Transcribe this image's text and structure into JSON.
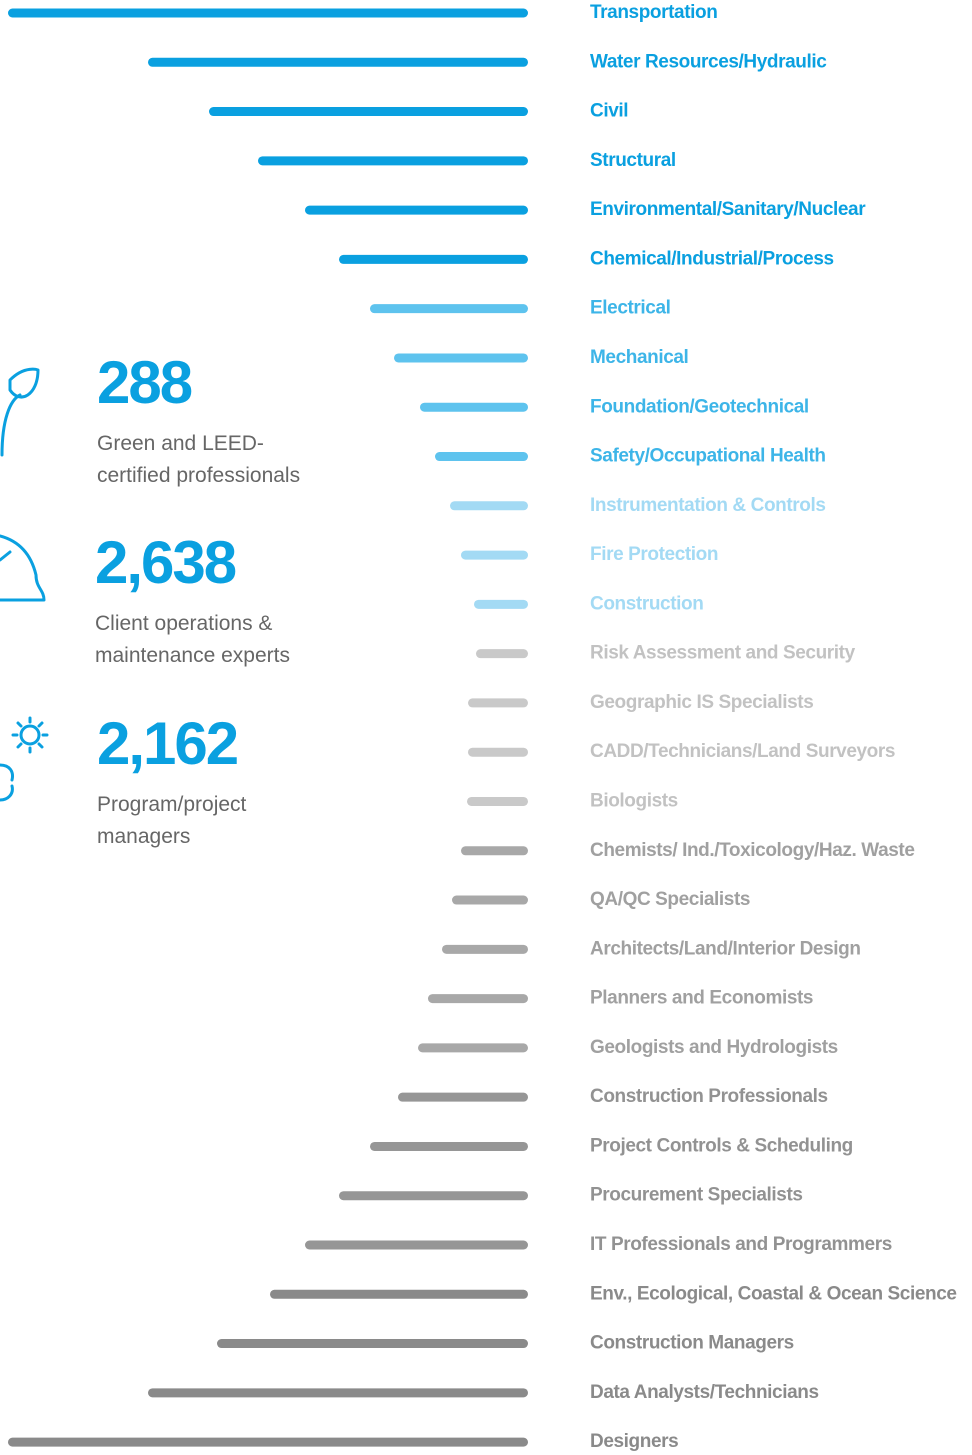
{
  "chart_data": {
    "type": "bar",
    "categories": [
      "Transportation",
      "Water Resources/Hydraulic",
      "Civil",
      "Structural",
      "Environmental/Sanitary/Nuclear",
      "Chemical/Industrial/Process",
      "Electrical",
      "Mechanical",
      "Foundation/Geotechnical",
      "Safety/Occupational Health",
      "Instrumentation & Controls",
      "Fire Protection",
      "Construction",
      "Risk Assessment and Security",
      "Geographic IS Specialists",
      "CADD/Technicians/Land Surveyors",
      "Biologists",
      "Chemists/ Ind./Toxicology/Haz. Waste",
      "QA/QC Specialists",
      "Architects/Land/Interior Design",
      "Planners and Economists",
      "Geologists and Hydrologists",
      "Construction Professionals",
      "Project Controls & Scheduling",
      "Procurement Specialists",
      "IT Professionals and Programmers",
      "Env., Ecological, Coastal & Ocean Science",
      "Construction Managers",
      "Data Analysts/Technicians",
      "Designers"
    ],
    "values": [
      520,
      380,
      319,
      270,
      223,
      189,
      158,
      134,
      108,
      93,
      78,
      67,
      54,
      52,
      60,
      60,
      61,
      67,
      76,
      86,
      100,
      110,
      130,
      158,
      189,
      223,
      258,
      311,
      380,
      520
    ],
    "colors": [
      "#0aa0e0",
      "#0aa0e0",
      "#0aa0e0",
      "#0aa0e0",
      "#0aa0e0",
      "#0aa0e0",
      "#5ec3ee",
      "#5ec3ee",
      "#5ec3ee",
      "#5ec3ee",
      "#a3daf4",
      "#a3daf4",
      "#a3daf4",
      "#c9c9c9",
      "#c9c9c9",
      "#c9c9c9",
      "#c9c9c9",
      "#a8a8a8",
      "#a8a8a8",
      "#a8a8a8",
      "#a8a8a8",
      "#a8a8a8",
      "#969696",
      "#969696",
      "#969696",
      "#969696",
      "#8a8a8a",
      "#8a8a8a",
      "#8a8a8a",
      "#8a8a8a"
    ],
    "label_colors": [
      "#0aa0e0",
      "#0aa0e0",
      "#0aa0e0",
      "#0aa0e0",
      "#0aa0e0",
      "#0aa0e0",
      "#3db5e8",
      "#3db5e8",
      "#3db5e8",
      "#3db5e8",
      "#a3daf4",
      "#a3daf4",
      "#a3daf4",
      "#c2c2c2",
      "#c2c2c2",
      "#c2c2c2",
      "#c2c2c2",
      "#a0a0a0",
      "#a0a0a0",
      "#a0a0a0",
      "#a0a0a0",
      "#a0a0a0",
      "#929292",
      "#929292",
      "#929292",
      "#929292",
      "#8a8a8a",
      "#8a8a8a",
      "#8a8a8a",
      "#8a8a8a"
    ]
  },
  "stats": [
    {
      "number": "288",
      "lines": [
        "Green and LEED-",
        "certified professionals"
      ]
    },
    {
      "number": "2,638",
      "lines": [
        "Client operations &",
        "maintenance experts"
      ]
    },
    {
      "number": "2,162",
      "lines": [
        "Program/project",
        "managers"
      ]
    }
  ]
}
